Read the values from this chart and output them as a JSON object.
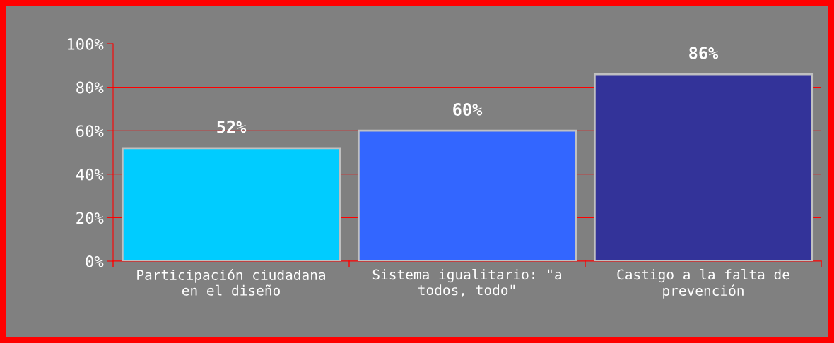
{
  "chart_data": {
    "type": "bar",
    "categories": [
      "Participación ciudadana en el diseño",
      "Sistema igualitario: \"a todos, todo\"",
      "Castigo a la falta de prevención"
    ],
    "values": [
      52,
      60,
      86
    ],
    "colors": [
      "#00ccff",
      "#3366ff",
      "#333399"
    ],
    "value_labels": [
      "52%",
      "60%",
      "86%"
    ],
    "ylim": [
      0,
      100
    ],
    "yticks": [
      {
        "value": 0,
        "label": "0%"
      },
      {
        "value": 20,
        "label": "20%"
      },
      {
        "value": 40,
        "label": "40%"
      },
      {
        "value": 60,
        "label": "60%"
      },
      {
        "value": 80,
        "label": "80%"
      },
      {
        "value": 100,
        "label": "100%"
      }
    ],
    "grid": "y",
    "legend": false
  }
}
